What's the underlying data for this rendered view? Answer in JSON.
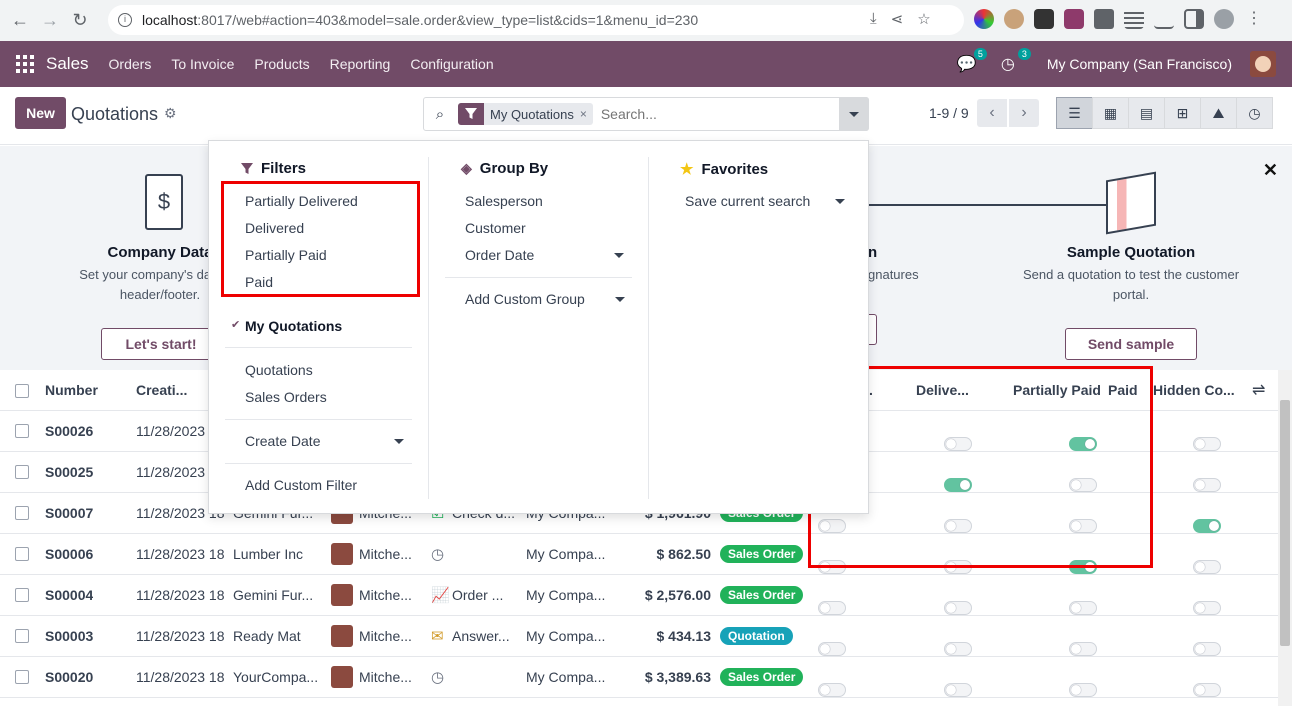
{
  "browser": {
    "url_host": "localhost",
    "url_path": ":8017/web#action=403&model=sale.order&view_type=list&cids=1&menu_id=230"
  },
  "navbar": {
    "app": "Sales",
    "menu": [
      "Orders",
      "To Invoice",
      "Products",
      "Reporting",
      "Configuration"
    ],
    "messages_count": "5",
    "activities_count": "3",
    "company": "My Company (San Francisco)"
  },
  "control_panel": {
    "new_label": "New",
    "title": "Quotations",
    "facet": "My Quotations",
    "search_placeholder": "Search...",
    "pager": "1-9 / 9"
  },
  "helper": {
    "steps": [
      {
        "title": "Company Data",
        "desc1": "Set your company's data for",
        "desc2": "header/footer.",
        "button": "Let's start!"
      },
      {
        "title": "n",
        "desc1": "gnatures",
        "desc2": "",
        "button": ""
      },
      {
        "title": "Sample Quotation",
        "desc1": "Send a quotation to test the customer",
        "desc2": "portal.",
        "button": "Send sample"
      }
    ]
  },
  "dropdown": {
    "filters_title": "Filters",
    "filters": [
      "Partially Delivered",
      "Delivered",
      "Partially Paid",
      "Paid"
    ],
    "my_quotations": "My Quotations",
    "quotations": "Quotations",
    "sales_orders": "Sales Orders",
    "create_date": "Create Date",
    "add_custom_filter": "Add Custom Filter",
    "groupby_title": "Group By",
    "groupby": [
      "Salesperson",
      "Customer",
      "Order Date"
    ],
    "add_custom_group": "Add Custom Group",
    "favorites_title": "Favorites",
    "save_current_search": "Save current search"
  },
  "table": {
    "headers": {
      "number": "Number",
      "creation": "Creati...",
      "col_partial": ".",
      "delivered": "Delive...",
      "partially_paid": "Partially Paid",
      "paid": "Paid",
      "hidden": "Hidden Co..."
    },
    "rows": [
      {
        "number": "S00026",
        "date": "11/28/2023",
        "customer": "",
        "salesperson": "",
        "activity": "",
        "company": "",
        "total": "",
        "status": "",
        "status_color": "",
        "t1": false,
        "t2": false,
        "t3": true,
        "t4": false
      },
      {
        "number": "S00025",
        "date": "11/28/2023",
        "customer": "",
        "salesperson": "",
        "activity": "",
        "company": "",
        "total": "",
        "status": "",
        "status_color": "",
        "t1": false,
        "t2": true,
        "t3": false,
        "t4": false
      },
      {
        "number": "S00007",
        "date": "11/28/2023 18",
        "customer": "Gemini Fur...",
        "salesperson": "Mitche...",
        "activity": "Check d...",
        "company": "My Compa...",
        "total": "$ 1,961.90",
        "status": "Sales Order",
        "status_color": "#21b25a",
        "t1": false,
        "t2": false,
        "t3": false,
        "t4": true
      },
      {
        "number": "S00006",
        "date": "11/28/2023 18",
        "customer": "Lumber Inc",
        "salesperson": "Mitche...",
        "activity": "",
        "company": "My Compa...",
        "total": "$ 862.50",
        "status": "Sales Order",
        "status_color": "#21b25a",
        "t1": false,
        "t2": false,
        "t3": true,
        "t4": false
      },
      {
        "number": "S00004",
        "date": "11/28/2023 18",
        "customer": "Gemini Fur...",
        "salesperson": "Mitche...",
        "activity": "Order ...",
        "company": "My Compa...",
        "total": "$ 2,576.00",
        "status": "Sales Order",
        "status_color": "#21b25a",
        "t1": false,
        "t2": false,
        "t3": false,
        "t4": false
      },
      {
        "number": "S00003",
        "date": "11/28/2023 18",
        "customer": "Ready Mat",
        "salesperson": "Mitche...",
        "activity": "Answer...",
        "company": "My Compa...",
        "total": "$ 434.13",
        "status": "Quotation",
        "status_color": "#17a2b8",
        "t1": false,
        "t2": false,
        "t3": false,
        "t4": false
      },
      {
        "number": "S00020",
        "date": "11/28/2023 18",
        "customer": "YourCompa...",
        "salesperson": "Mitche...",
        "activity": "",
        "company": "My Compa...",
        "total": "$ 3,389.63",
        "status": "Sales Order",
        "status_color": "#21b25a",
        "t1": false,
        "t2": false,
        "t3": false,
        "t4": false
      }
    ]
  },
  "colors": {
    "primary": "#714b67",
    "highlight": "#e00000",
    "toggle_on": "#62c3a0"
  }
}
